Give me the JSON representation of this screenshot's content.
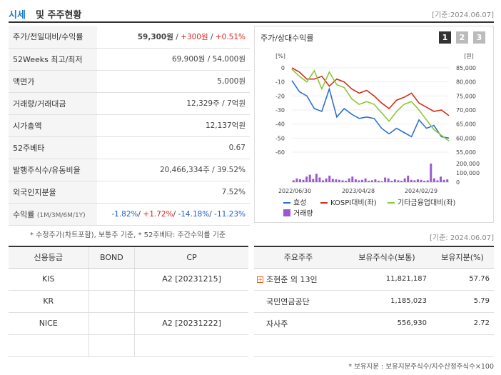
{
  "header": {
    "title_a": "시세",
    "title_b": "및 주주현황",
    "base_date": "[기준:2024.06.07]"
  },
  "stock_table": [
    {
      "label": "주가/전일대비/수익률",
      "value_parts": [
        {
          "t": "59,300원",
          "c": "bold"
        },
        {
          "t": " / ",
          "c": ""
        },
        {
          "t": "+300원",
          "c": "up"
        },
        {
          "t": " / ",
          "c": ""
        },
        {
          "t": "+0.51%",
          "c": "up"
        }
      ]
    },
    {
      "label": "52Weeks 최고/최저",
      "value_parts": [
        {
          "t": "69,900원 / 54,000원",
          "c": ""
        }
      ]
    },
    {
      "label": "액면가",
      "value_parts": [
        {
          "t": "5,000원",
          "c": ""
        }
      ]
    },
    {
      "label": "거래량/거래대금",
      "value_parts": [
        {
          "t": "12,329주 / 7억원",
          "c": ""
        }
      ]
    },
    {
      "label": "시가총액",
      "value_parts": [
        {
          "t": "12,137억원",
          "c": ""
        }
      ]
    },
    {
      "label": "52주베타",
      "value_parts": [
        {
          "t": "0.67",
          "c": ""
        }
      ]
    },
    {
      "label": "발행주식수/유동비율",
      "value_parts": [
        {
          "t": "20,466,334주 / 39.52%",
          "c": ""
        }
      ]
    },
    {
      "label": "외국인지분율",
      "value_parts": [
        {
          "t": "7.52%",
          "c": ""
        }
      ]
    },
    {
      "label": "수익률",
      "label_small": "(1M/3M/6M/1Y)",
      "value_parts": [
        {
          "t": "-1.82%",
          "c": "down"
        },
        {
          "t": "/ ",
          "c": ""
        },
        {
          "t": "+1.72%",
          "c": "up"
        },
        {
          "t": "/ ",
          "c": ""
        },
        {
          "t": "-14.18%",
          "c": "down"
        },
        {
          "t": "/ ",
          "c": ""
        },
        {
          "t": "-11.23%",
          "c": "down"
        }
      ]
    }
  ],
  "note_left": "* 수정주가(차트포함), 보통주 기준, * 52주베타: 주간수익률 기준",
  "chart_panel": {
    "title": "주가/상대수익률",
    "buttons": [
      "1",
      "2",
      "3"
    ],
    "colors": {
      "active": "#333333",
      "inactive": "#bbbbbb"
    }
  },
  "chart_data": {
    "type": "line",
    "left_axis_unit": "[%]",
    "right_axis_unit": "[원]",
    "left_ticks": [
      "0",
      "-10",
      "-20",
      "-30",
      "-40",
      "-50",
      "-60"
    ],
    "right_ticks": [
      "85,000",
      "80,000",
      "75,000",
      "70,000",
      "65,000",
      "60,000",
      "55,000"
    ],
    "volume_ticks": [
      "200,000",
      "100,000",
      "0"
    ],
    "x_labels": [
      "2022/06/30",
      "2023/04/28",
      "2024/02/29"
    ],
    "ylim": [
      -60,
      0
    ],
    "series": [
      {
        "name": "효성",
        "color": "#2f6fd0",
        "values": [
          -9,
          -17,
          -20,
          -29,
          -31,
          -15,
          -35,
          -29,
          -33,
          -36,
          -35,
          -36,
          -43,
          -47,
          -43,
          -46,
          -49,
          -37,
          -43,
          -41,
          -49,
          -50
        ]
      },
      {
        "name": "KOSPI대비(좌)",
        "color": "#d0301a",
        "values": [
          0,
          -3,
          -8,
          -8,
          -6,
          -13,
          -8,
          -10,
          -15,
          -18,
          -16,
          -20,
          -25,
          -29,
          -23,
          -21,
          -18,
          -25,
          -28,
          -31,
          -30,
          -34
        ]
      },
      {
        "name": "기타금융업대비(좌)",
        "color": "#8cc83c",
        "values": [
          -1,
          -6,
          -10,
          -2,
          -15,
          -3,
          -12,
          -14,
          -22,
          -26,
          -24,
          -26,
          -32,
          -38,
          -31,
          -26,
          -24,
          -30,
          -37,
          -44,
          -48,
          -52
        ]
      }
    ],
    "volume": {
      "name": "거래량",
      "color": "#9b59d0",
      "values": [
        20000,
        40000,
        30000,
        25000,
        60000,
        80000,
        35000,
        90000,
        50000,
        20000,
        40000,
        70000,
        35000,
        30000,
        25000,
        20000,
        15000,
        40000,
        60000,
        30000,
        20000,
        25000,
        40000,
        15000,
        20000,
        30000,
        15000,
        10000,
        50000,
        40000,
        15000,
        30000,
        20000,
        15000,
        40000,
        70000,
        25000,
        20000,
        30000,
        25000,
        15000,
        20000,
        210000,
        40000,
        20000,
        60000,
        25000,
        30000
      ]
    },
    "legend_position": "bottom"
  },
  "base_date2": "[기준: 2024.06.07]",
  "credit_table": {
    "headers": [
      "신용등급",
      "BOND",
      "CP"
    ],
    "rows": [
      [
        "KIS",
        "",
        "A2 [20231215]"
      ],
      [
        "KR",
        "",
        ""
      ],
      [
        "NICE",
        "",
        "A2 [20231222]"
      ],
      [
        "",
        "",
        ""
      ]
    ]
  },
  "holder_table": {
    "headers": [
      "주요주주",
      "보유주식수(보통)",
      "보유지분(%)"
    ],
    "rows": [
      [
        "조현준 외 13인",
        "11,821,187",
        "57.76"
      ],
      [
        "국민연금공단",
        "1,185,023",
        "5.79"
      ],
      [
        "자사주",
        "556,930",
        "2.72"
      ],
      [
        "",
        "",
        ""
      ]
    ]
  },
  "note_right": "* 보유지분 : 보유지분주식수/지수산정주식수×100"
}
